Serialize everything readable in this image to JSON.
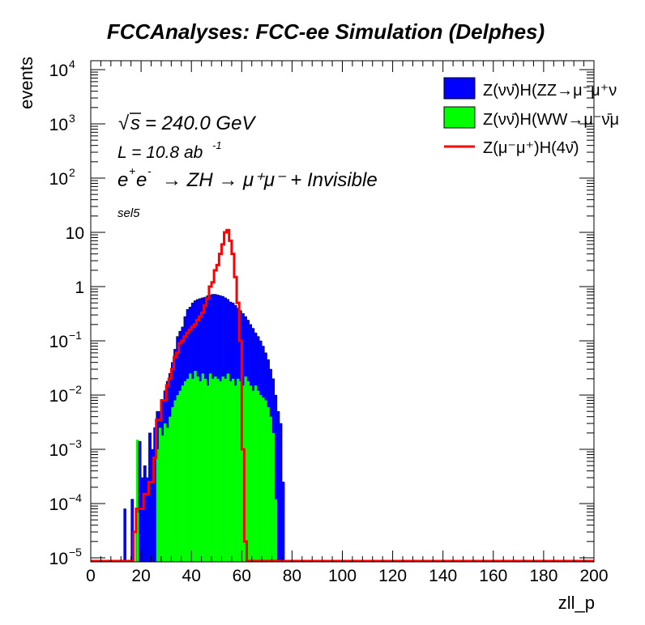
{
  "chart_data": {
    "type": "histogram",
    "title": "FCCAnalyses: FCC-ee Simulation (Delphes)",
    "xlabel": "zll_p",
    "ylabel": "events",
    "xlim": [
      0,
      200
    ],
    "ylim": [
      8e-06,
      12000
    ],
    "yscale": "log",
    "bin_width": 1,
    "x_ticks": [
      "0",
      "20",
      "40",
      "60",
      "80",
      "100",
      "120",
      "140",
      "160",
      "180",
      "200"
    ],
    "y_tick_labels": [
      {
        "base": "10",
        "exp": "4",
        "value": 10000
      },
      {
        "base": "10",
        "exp": "3",
        "value": 1000
      },
      {
        "base": "10",
        "exp": "2",
        "value": 100
      },
      {
        "base": "10",
        "exp": "",
        "value": 10
      },
      {
        "base": "1",
        "exp": "",
        "value": 1
      },
      {
        "base": "10",
        "exp": "−1",
        "value": 0.1
      },
      {
        "base": "10",
        "exp": "−2",
        "value": 0.01
      },
      {
        "base": "10",
        "exp": "−3",
        "value": 0.001
      },
      {
        "base": "10",
        "exp": "−4",
        "value": 0.0001
      },
      {
        "base": "10",
        "exp": "−5",
        "value": 1e-05
      }
    ],
    "annotations": {
      "sqrt_s": "= 240.0 GeV",
      "lumi_base": "L = 10.8 ab",
      "lumi_exp": "-1",
      "process": "→ ZH → μ⁺μ⁻ + Invisible",
      "selection": "sel5"
    },
    "legend": {
      "position": "top-right",
      "entries": [
        "Z(νν̄)H(ZZ→μ⁻μ⁺ν",
        "Z(νν̄)H(WW→μ⁻ν̄μ",
        "Z(μ⁻μ⁺)H(4ν̄)"
      ]
    },
    "series": [
      {
        "name": "Z(νν̄)H(ZZ→μ⁻μ⁺ν",
        "style": "filled-stacked",
        "color": "#0000ff",
        "x_start": 13,
        "values": [
          8e-05,
          0,
          0,
          0.00012,
          0,
          7e-05,
          0.0014,
          0.0003,
          0.0005,
          0.0003,
          0.002,
          0.001,
          0.0025,
          0.005,
          0.005,
          0.008,
          0.012,
          0.018,
          0.025,
          0.04,
          0.07,
          0.12,
          0.15,
          0.18,
          0.28,
          0.38,
          0.42,
          0.5,
          0.55,
          0.58,
          0.6,
          0.62,
          0.64,
          0.68,
          0.7,
          0.72,
          0.72,
          0.7,
          0.68,
          0.66,
          0.62,
          0.58,
          0.52,
          0.5,
          0.45,
          0.4,
          0.36,
          0.32,
          0.28,
          0.24,
          0.2,
          0.17,
          0.14,
          0.12,
          0.1,
          0.08,
          0.06,
          0.045,
          0.03,
          0.02,
          0.01,
          0.005,
          0.003,
          0.00025
        ]
      },
      {
        "name": "Z(νν̄)H(WW→μ⁻ν̄μ",
        "style": "filled",
        "color": "#00ff00",
        "x_start": 18,
        "values": [
          0.0015,
          0,
          0,
          0,
          0,
          0,
          0,
          0,
          0.001,
          0.0025,
          0.0018,
          0.003,
          0.0025,
          0.004,
          0.006,
          0.008,
          0.01,
          0.012,
          0.015,
          0.018,
          0.02,
          0.025,
          0.02,
          0.028,
          0.022,
          0.018,
          0.025,
          0.02,
          0.015,
          0.025,
          0.02,
          0.022,
          0.02,
          0.018,
          0.022,
          0.02,
          0.025,
          0.018,
          0.02,
          0.015,
          0.02,
          0.018,
          0.015,
          0.022,
          0.018,
          0.015,
          0.012,
          0.015,
          0.012,
          0.01,
          0.009,
          0.008,
          0.006,
          0.004,
          0.002,
          0.00012
        ]
      },
      {
        "name": "Z(μ⁻μ⁺)H(4ν̄)",
        "style": "line",
        "color": "#ff0000",
        "x_start": 17,
        "values": [
          3e-05,
          8e-05,
          8e-05,
          8e-05,
          0.00015,
          0.00015,
          0.00025,
          0.00025,
          0.0007,
          0.0035,
          0.0035,
          0.008,
          0.008,
          0.015,
          0.02,
          0.03,
          0.05,
          0.06,
          0.09,
          0.1,
          0.12,
          0.14,
          0.16,
          0.18,
          0.2,
          0.24,
          0.28,
          0.33,
          0.45,
          0.6,
          1.0,
          1.2,
          2.0,
          2.5,
          4.0,
          6.0,
          10.0,
          11.0,
          7.0,
          4.0,
          1.5,
          0.5,
          0.1,
          0.001,
          2e-05
        ]
      }
    ]
  }
}
